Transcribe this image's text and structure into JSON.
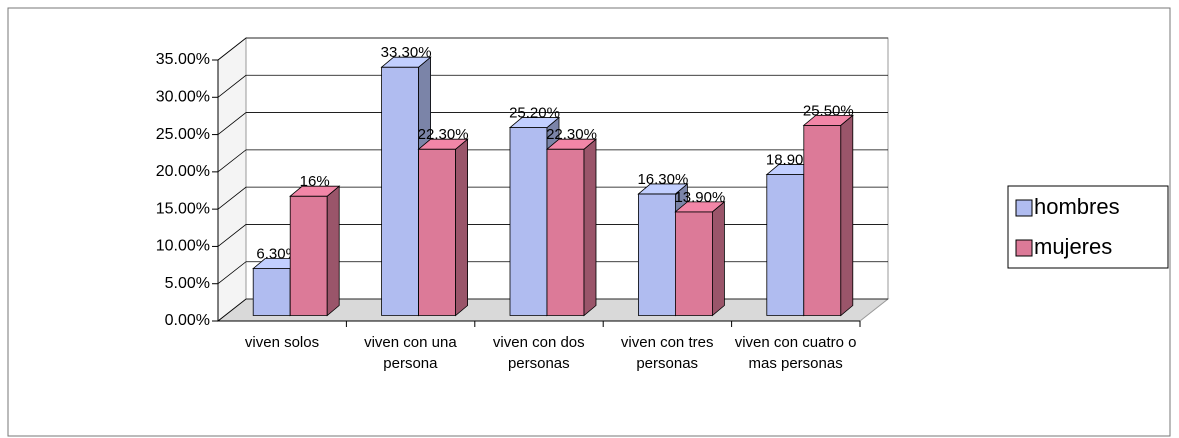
{
  "chart_data": {
    "type": "bar3d",
    "categories": [
      "viven solos",
      "viven con una persona",
      "viven con dos personas",
      "viven con tres personas",
      "viven con cuatro o mas personas"
    ],
    "series": [
      {
        "name": "hombres",
        "color": "#b0bcf0",
        "values": [
          6.3,
          33.3,
          25.2,
          16.3,
          18.9
        ],
        "value_labels": [
          "6.30%",
          "33.30%",
          "25.20%",
          "16.30%",
          "18.90%"
        ]
      },
      {
        "name": "mujeres",
        "color": "#dc7a98",
        "values": [
          16,
          22.3,
          22.3,
          13.9,
          25.5
        ],
        "value_labels": [
          "16%",
          "22.30%",
          "22.30%",
          "13.90%",
          "25.50%"
        ]
      }
    ],
    "ylim": [
      0,
      35
    ],
    "yticks": [
      {
        "value": 0,
        "label": "0.00%"
      },
      {
        "value": 5,
        "label": "5.00%"
      },
      {
        "value": 10,
        "label": "10.00%"
      },
      {
        "value": 15,
        "label": "15.00%"
      },
      {
        "value": 20,
        "label": "20.00%"
      },
      {
        "value": 25,
        "label": "25.00%"
      },
      {
        "value": 30,
        "label": "30.00%"
      },
      {
        "value": 35,
        "label": "35.00%"
      }
    ],
    "grid": true,
    "legend": "right"
  }
}
